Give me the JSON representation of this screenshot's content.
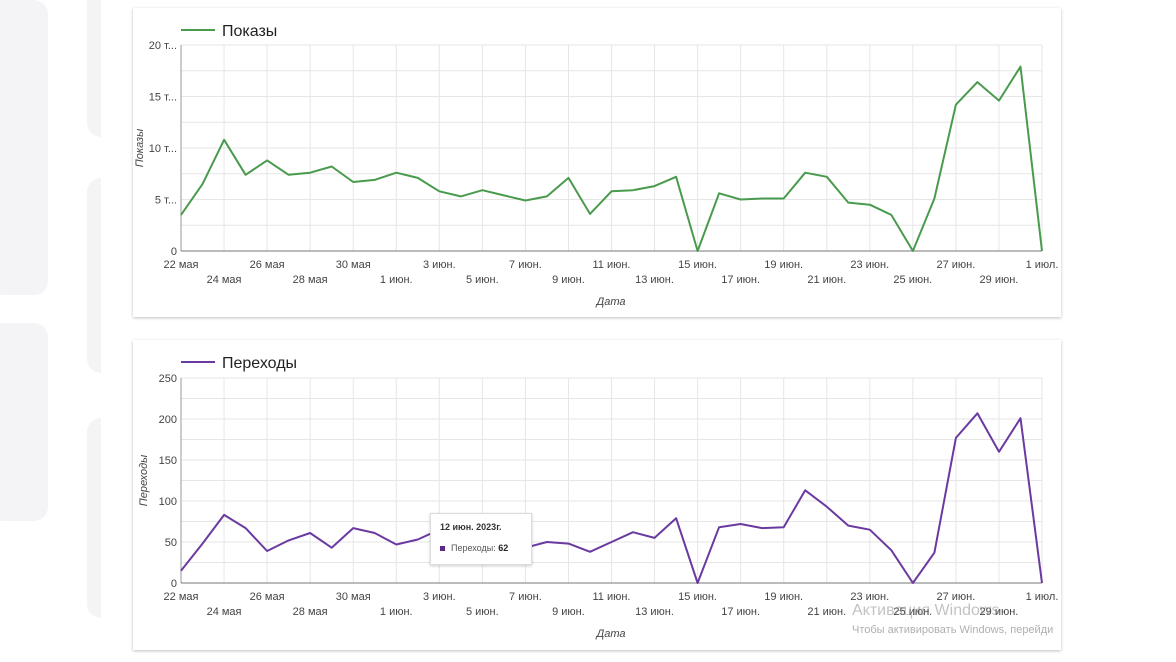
{
  "chart_data": [
    {
      "type": "line",
      "title": "Показы",
      "legend": [
        "Показы"
      ],
      "legend_position": "top-left",
      "xlabel": "Дата",
      "ylabel": "Показы",
      "color": "#4a9a4e",
      "ylim": [
        0,
        20000
      ],
      "yticks": [
        0,
        5000,
        10000,
        15000,
        20000
      ],
      "ytick_labels": [
        "0",
        "5 т...",
        "10 т...",
        "15 т...",
        "20 т..."
      ],
      "grid": true,
      "x_tick_labels": [
        "22 мая",
        "24 мая",
        "26 мая",
        "28 мая",
        "30 мая",
        "1 июн.",
        "3 июн.",
        "5 июн.",
        "7 июн.",
        "9 июн.",
        "11 июн.",
        "13 июн.",
        "15 июн.",
        "17 июн.",
        "19 июн.",
        "21 июн.",
        "23 июн.",
        "25 июн.",
        "27 июн.",
        "29 июн.",
        "1 июл."
      ],
      "values": [
        3500,
        6500,
        10800,
        7400,
        8800,
        7400,
        7600,
        8200,
        6700,
        6900,
        7600,
        7100,
        5800,
        5300,
        5900,
        5400,
        4900,
        5300,
        7100,
        3600,
        5800,
        5900,
        6300,
        7200,
        0,
        5600,
        5000,
        5100,
        5100,
        7600,
        7200,
        4700,
        4500,
        3500,
        0,
        5100,
        14200,
        16400,
        14600,
        17900,
        0
      ]
    },
    {
      "type": "line",
      "title": "Переходы",
      "legend": [
        "Переходы"
      ],
      "legend_position": "top-left",
      "xlabel": "Дата",
      "ylabel": "Переходы",
      "color": "#6a3aa0",
      "ylim": [
        0,
        250
      ],
      "yticks": [
        0,
        50,
        100,
        150,
        200,
        250
      ],
      "ytick_labels": [
        "0",
        "50",
        "100",
        "150",
        "200",
        "250"
      ],
      "grid": true,
      "x_tick_labels": [
        "22 мая",
        "24 мая",
        "26 мая",
        "28 мая",
        "30 мая",
        "1 июн.",
        "3 июн.",
        "5 июн.",
        "7 июн.",
        "9 июн.",
        "11 июн.",
        "13 июн.",
        "15 июн.",
        "17 июн.",
        "19 июн.",
        "21 июн.",
        "23 июн.",
        "25 июн.",
        "27 июн.",
        "29 июн.",
        "1 июл."
      ],
      "values": [
        15,
        48,
        83,
        67,
        39,
        52,
        61,
        43,
        67,
        61,
        47,
        53,
        65,
        60,
        58,
        50,
        43,
        50,
        48,
        38,
        50,
        62,
        55,
        79,
        0,
        68,
        72,
        67,
        68,
        113,
        93,
        70,
        65,
        40,
        0,
        37,
        177,
        207,
        160,
        201,
        0
      ],
      "tooltip": {
        "title": "12 июн. 2023г.",
        "label": "Переходы:",
        "value": "62"
      }
    }
  ],
  "watermark": {
    "line1": "Активация Windows",
    "line2": "Чтобы активировать Windows, перейди"
  }
}
